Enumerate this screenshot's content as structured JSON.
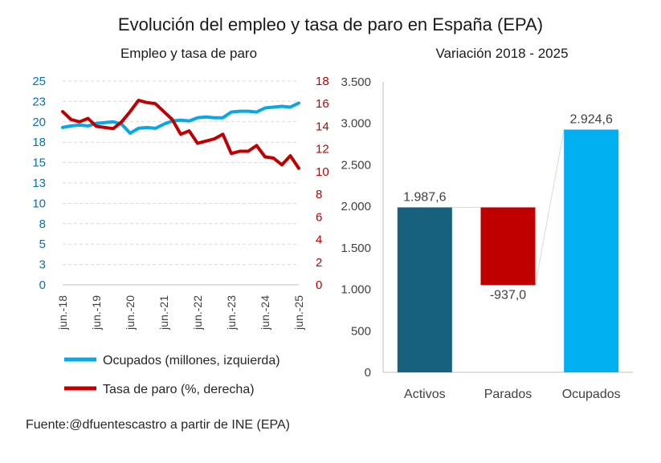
{
  "title": "Evolución del empleo y tasa de paro en España (EPA)",
  "source": "Fuente:@dfuentescastro a partir de INE (EPA)",
  "colors": {
    "ocupados": "#0aa7e6",
    "paro": "#c00000",
    "activos": "#17617f",
    "parados": "#c00000",
    "ocupados_bar": "#00b0f0",
    "left_axis": "#0b6fb8",
    "right_axis": "#c00000"
  },
  "chart_data": [
    {
      "type": "line",
      "title": "Empleo y tasa de paro",
      "x": [
        "jun.-18",
        "sep.-18",
        "dic.-18",
        "mar.-19",
        "jun.-19",
        "sep.-19",
        "dic.-19",
        "mar.-20",
        "jun.-20",
        "sep.-20",
        "dic.-20",
        "mar.-21",
        "jun.-21",
        "sep.-21",
        "dic.-21",
        "mar.-22",
        "jun.-22",
        "sep.-22",
        "dic.-22",
        "mar.-23",
        "jun.-23",
        "sep.-23",
        "dic.-23",
        "mar.-24",
        "jun.-24",
        "sep.-24",
        "dic.-24",
        "mar.-25",
        "jun.-25"
      ],
      "x_tick_labels": [
        "jun.-18",
        "jun.-19",
        "jun.-20",
        "jun.-21",
        "jun.-22",
        "jun.-23",
        "jun.-24",
        "jun.-25"
      ],
      "y_left": {
        "ticks": [
          "0",
          "3",
          "5",
          "8",
          "10",
          "13",
          "15",
          "18",
          "20",
          "23",
          "25"
        ],
        "ylim": [
          0,
          25
        ]
      },
      "y_right": {
        "ticks": [
          "0",
          "2",
          "4",
          "6",
          "8",
          "10",
          "12",
          "14",
          "16",
          "18"
        ],
        "ylim": [
          0,
          18
        ]
      },
      "series": [
        {
          "name": "Ocupados (millones, izquierda)",
          "axis": "left",
          "values": [
            19.3,
            19.5,
            19.6,
            19.5,
            19.8,
            19.9,
            20.0,
            19.7,
            18.6,
            19.2,
            19.3,
            19.2,
            19.7,
            20.1,
            20.2,
            20.1,
            20.5,
            20.6,
            20.5,
            20.5,
            21.2,
            21.3,
            21.3,
            21.2,
            21.7,
            21.8,
            21.9,
            21.8,
            22.3
          ]
        },
        {
          "name": "Tasa de paro (%, derecha)",
          "axis": "right",
          "values": [
            15.3,
            14.6,
            14.4,
            14.7,
            14.0,
            13.9,
            13.8,
            14.4,
            15.3,
            16.3,
            16.1,
            16.0,
            15.3,
            14.6,
            13.3,
            13.6,
            12.5,
            12.7,
            12.9,
            13.3,
            11.6,
            11.8,
            11.8,
            12.3,
            11.3,
            11.2,
            10.6,
            11.4,
            10.3
          ]
        }
      ],
      "legend": [
        "Ocupados (millones, izquierda)",
        "Tasa de paro (%, derecha)"
      ],
      "legend_position": "bottom"
    },
    {
      "type": "waterfall",
      "title": "Variación 2018 - 2025",
      "categories": [
        "Activos",
        "Parados",
        "Ocupados"
      ],
      "values": [
        1987.6,
        -937.0,
        2924.6
      ],
      "labels": [
        "1.987,6",
        "-937,0",
        "2.924,6"
      ],
      "ylim": [
        0,
        3500
      ],
      "ticks": [
        "0",
        "500",
        "1.000",
        "1.500",
        "2.000",
        "2.500",
        "3.000",
        "3.500"
      ]
    }
  ]
}
